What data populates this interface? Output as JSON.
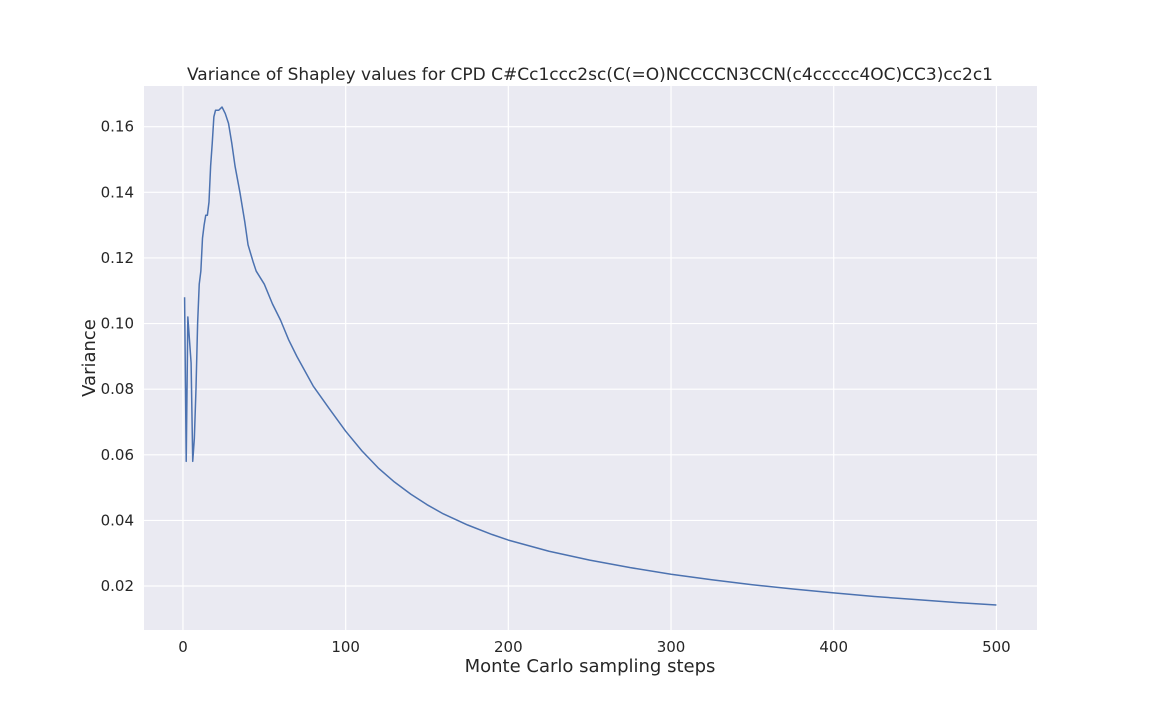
{
  "chart_data": {
    "type": "line",
    "title": "Variance of Shapley values for CPD C#Cc1ccc2sc(C(=O)NCCCCN3CCN(c4ccccc4OC)CC3)cc2c1",
    "xlabel": "Monte Carlo sampling steps",
    "ylabel": "Variance",
    "xlim": [
      -23.95,
      524.95
    ],
    "ylim": [
      0.0066,
      0.1724
    ],
    "xticks": [
      0,
      100,
      200,
      300,
      400,
      500
    ],
    "xtick_labels": [
      "0",
      "100",
      "200",
      "300",
      "400",
      "500"
    ],
    "yticks": [
      0.02,
      0.04,
      0.06,
      0.08,
      0.1,
      0.12,
      0.14,
      0.16
    ],
    "ytick_labels": [
      "0.02",
      "0.04",
      "0.06",
      "0.08",
      "0.10",
      "0.12",
      "0.14",
      "0.16"
    ],
    "grid": true,
    "background": "#eaeaf2",
    "grid_color": "#ffffff",
    "series": [
      {
        "color": "#4c72b0",
        "points": [
          [
            1,
            0.108
          ],
          [
            2,
            0.058
          ],
          [
            3,
            0.102
          ],
          [
            5,
            0.088
          ],
          [
            6,
            0.058
          ],
          [
            7,
            0.065
          ],
          [
            8,
            0.08
          ],
          [
            9,
            0.1
          ],
          [
            10,
            0.112
          ],
          [
            11,
            0.116
          ],
          [
            12,
            0.126
          ],
          [
            13,
            0.13
          ],
          [
            14,
            0.133
          ],
          [
            15,
            0.133
          ],
          [
            16,
            0.137
          ],
          [
            17,
            0.148
          ],
          [
            18,
            0.155
          ],
          [
            19,
            0.163
          ],
          [
            20,
            0.165
          ],
          [
            22,
            0.165
          ],
          [
            24,
            0.166
          ],
          [
            26,
            0.164
          ],
          [
            28,
            0.161
          ],
          [
            30,
            0.155
          ],
          [
            32,
            0.148
          ],
          [
            35,
            0.14
          ],
          [
            38,
            0.131
          ],
          [
            40,
            0.124
          ],
          [
            43,
            0.119
          ],
          [
            45,
            0.116
          ],
          [
            50,
            0.112
          ],
          [
            55,
            0.106
          ],
          [
            60,
            0.101
          ],
          [
            65,
            0.095
          ],
          [
            70,
            0.09
          ],
          [
            80,
            0.081
          ],
          [
            90,
            0.074
          ],
          [
            100,
            0.0672
          ],
          [
            110,
            0.0612
          ],
          [
            120,
            0.056
          ],
          [
            130,
            0.0517
          ],
          [
            140,
            0.048
          ],
          [
            150,
            0.0448
          ],
          [
            160,
            0.042
          ],
          [
            175,
            0.0386
          ],
          [
            190,
            0.0357
          ],
          [
            200,
            0.034
          ],
          [
            225,
            0.0306
          ],
          [
            250,
            0.0279
          ],
          [
            275,
            0.0256
          ],
          [
            300,
            0.0236
          ],
          [
            325,
            0.0219
          ],
          [
            350,
            0.0204
          ],
          [
            375,
            0.0191
          ],
          [
            400,
            0.0179
          ],
          [
            425,
            0.0168
          ],
          [
            450,
            0.0159
          ],
          [
            475,
            0.015
          ],
          [
            500,
            0.0142
          ]
        ]
      }
    ]
  }
}
